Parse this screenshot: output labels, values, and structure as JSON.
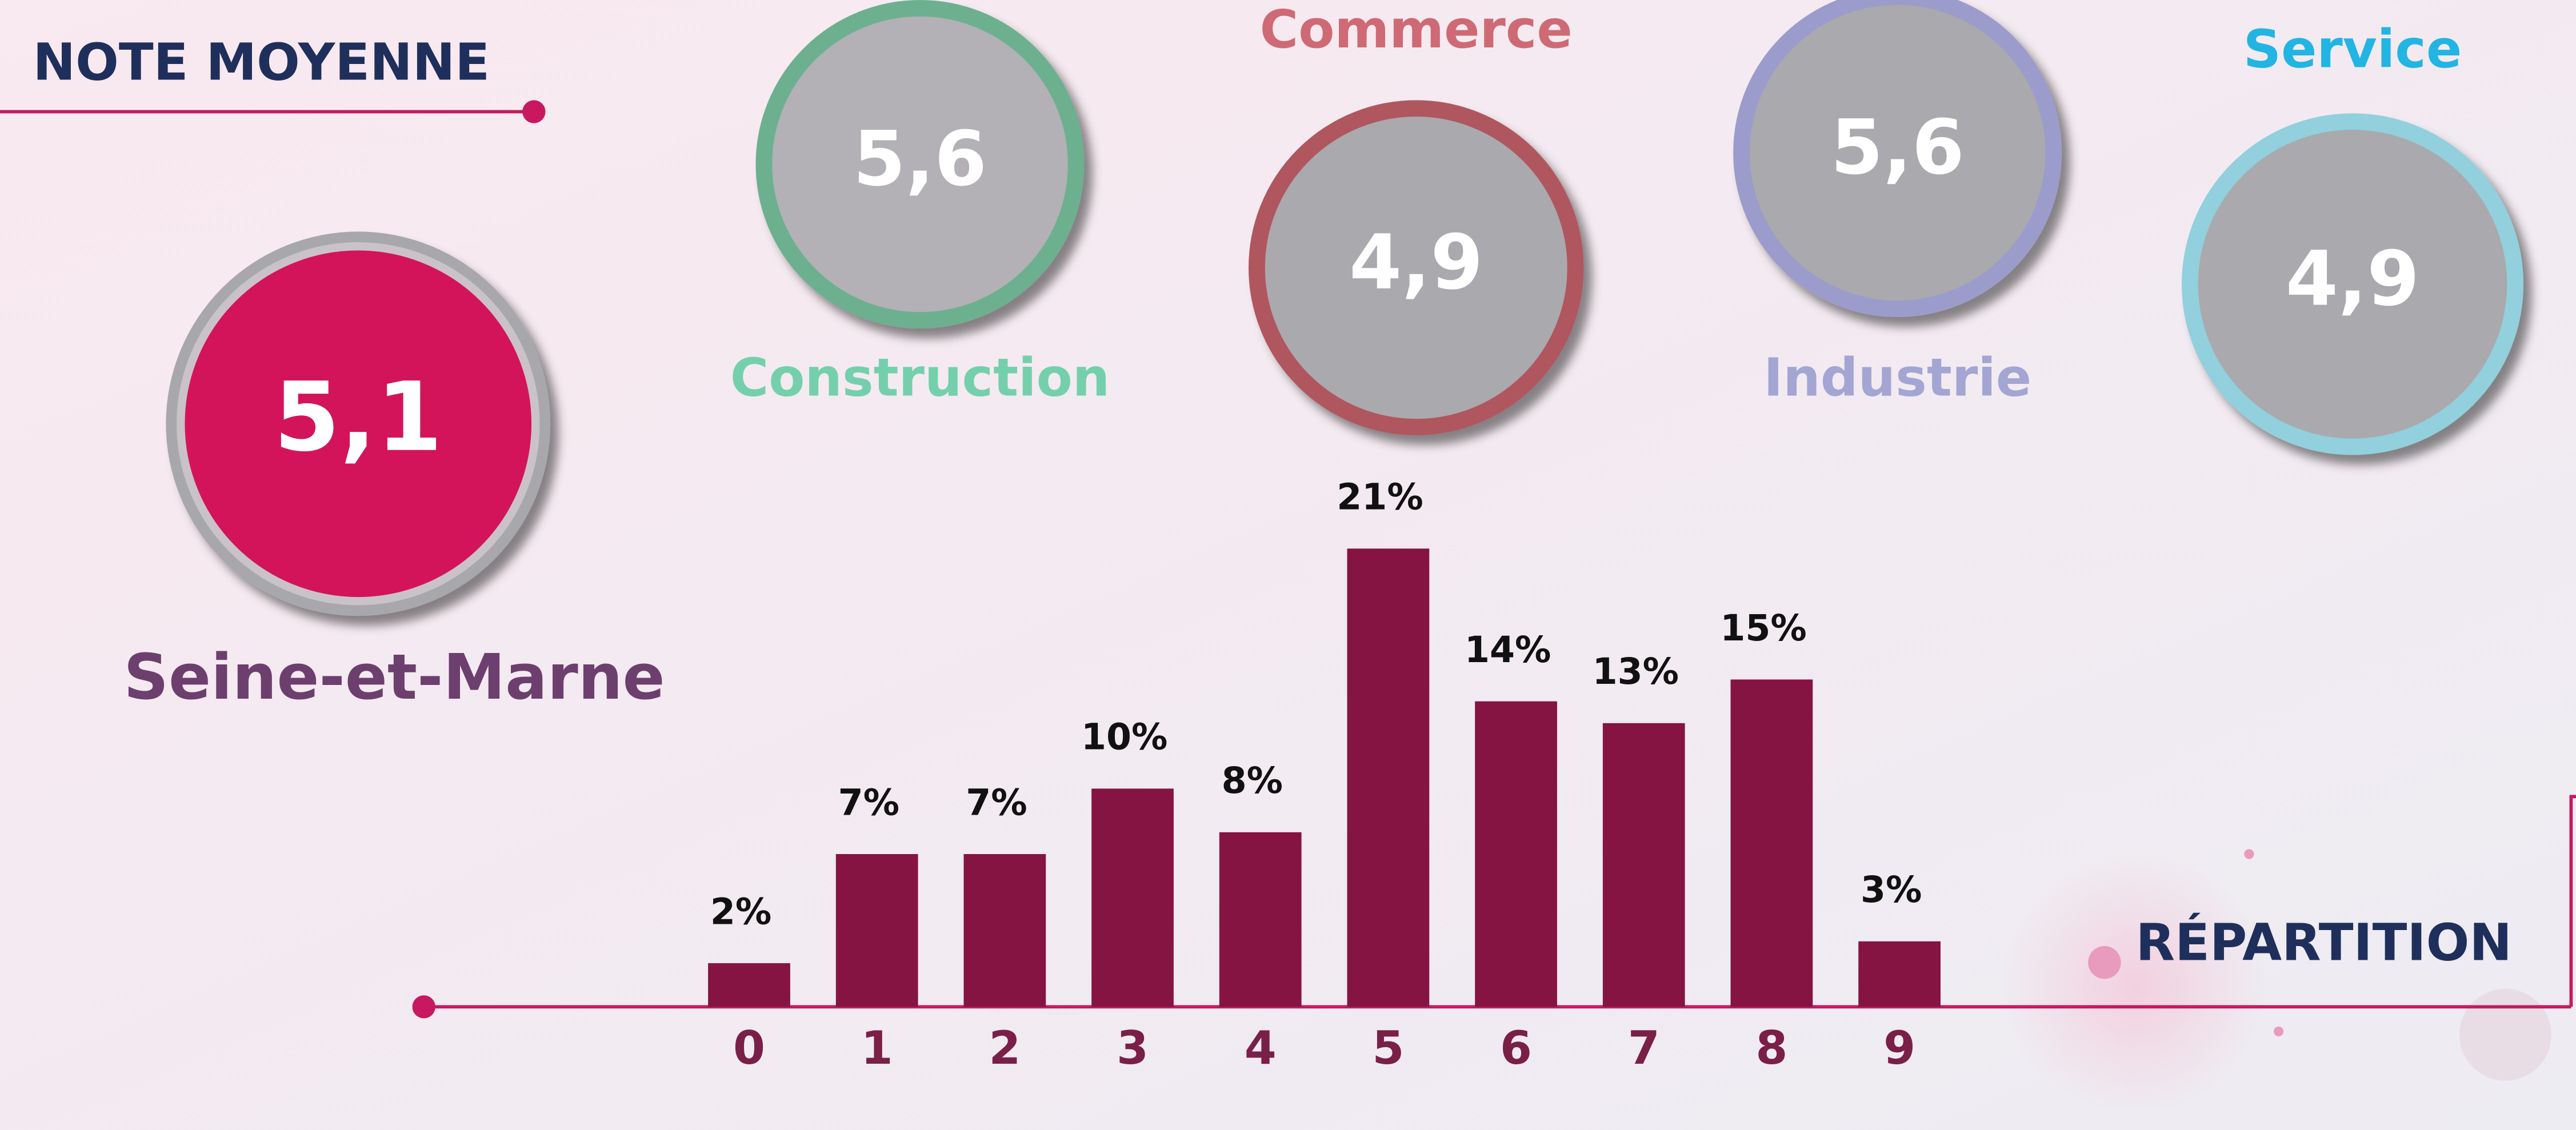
{
  "header": {
    "title": "NOTE MOYENNE"
  },
  "scores": [
    {
      "label": "Seine-et-Marne",
      "value": "5,1"
    },
    {
      "label": "Construction",
      "value": "5,6"
    },
    {
      "label": "Commerce",
      "value": "4,9"
    },
    {
      "label": "Industrie",
      "value": "5,6"
    },
    {
      "label": "Service",
      "value": "4,9"
    }
  ],
  "chart_data": {
    "type": "bar",
    "title": "RÉPARTITION",
    "categories": [
      "0",
      "1",
      "2",
      "3",
      "4",
      "5",
      "6",
      "7",
      "8",
      "9"
    ],
    "values": [
      2,
      7,
      7,
      10,
      8,
      21,
      14,
      13,
      15,
      3
    ],
    "value_labels": [
      "2%",
      "7%",
      "7%",
      "10%",
      "8%",
      "21%",
      "14%",
      "13%",
      "15%",
      "3%"
    ],
    "color": "#851443"
  }
}
